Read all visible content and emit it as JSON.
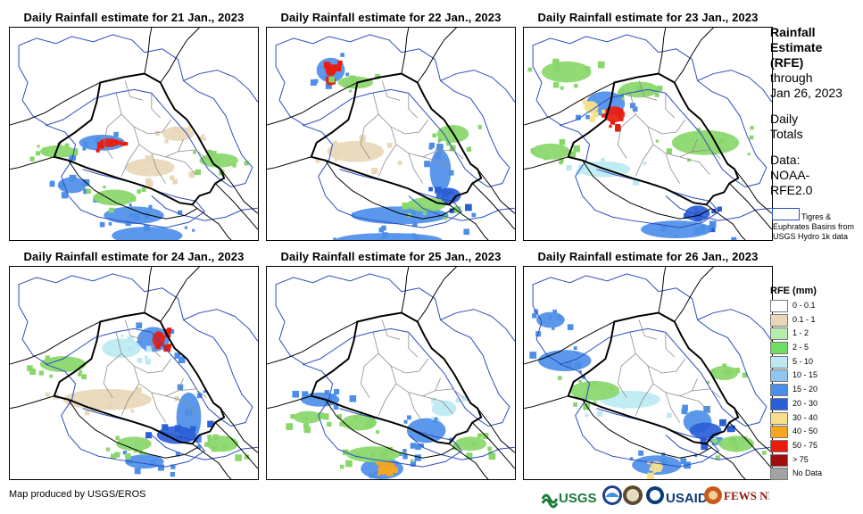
{
  "panels": [
    {
      "title": "Daily Rainfall estimate for 21 Jan., 2023",
      "blobs": [
        [
          104,
          130,
          26,
          9,
          "#4d8ee8"
        ],
        [
          112,
          130,
          11,
          5,
          "#ea1c0e"
        ],
        [
          140,
          212,
          34,
          10,
          "#4d8ee8"
        ],
        [
          70,
          178,
          16,
          9,
          "#4d8ee8"
        ],
        [
          155,
          235,
          40,
          10,
          "#4d8ee8"
        ],
        [
          54,
          140,
          20,
          7,
          "#89d76a"
        ],
        [
          236,
          150,
          22,
          8,
          "#89d76a"
        ],
        [
          158,
          158,
          28,
          10,
          "#e9d8b8"
        ],
        [
          190,
          120,
          18,
          8,
          "#e9d8b8"
        ],
        [
          118,
          192,
          24,
          9,
          "#89d76a"
        ]
      ]
    },
    {
      "title": "Daily Rainfall estimate for 22 Jan., 2023",
      "blobs": [
        [
          72,
          48,
          16,
          14,
          "#4d8ee8"
        ],
        [
          72,
          48,
          6,
          7,
          "#ea1c0e"
        ],
        [
          100,
          62,
          20,
          7,
          "#89d76a"
        ],
        [
          196,
          162,
          12,
          24,
          "#4d8ee8"
        ],
        [
          205,
          190,
          14,
          9,
          "#2b5fd6"
        ],
        [
          150,
          212,
          55,
          10,
          "#4d8ee8"
        ],
        [
          138,
          240,
          60,
          8,
          "#4d8ee8"
        ],
        [
          100,
          140,
          32,
          12,
          "#e9d8b8"
        ],
        [
          210,
          120,
          18,
          10,
          "#89d76a"
        ],
        [
          180,
          200,
          22,
          8,
          "#89d76a"
        ]
      ]
    },
    {
      "title": "Daily Rainfall estimate for 23 Jan., 2023",
      "blobs": [
        [
          92,
          86,
          22,
          14,
          "#4d8ee8"
        ],
        [
          102,
          98,
          12,
          9,
          "#ea1c0e"
        ],
        [
          76,
          90,
          8,
          7,
          "#f6e08a"
        ],
        [
          48,
          50,
          28,
          12,
          "#89d76a"
        ],
        [
          130,
          70,
          22,
          9,
          "#89d76a"
        ],
        [
          205,
          130,
          38,
          14,
          "#89d76a"
        ],
        [
          196,
          210,
          14,
          9,
          "#2b5fd6"
        ],
        [
          172,
          228,
          40,
          10,
          "#4d8ee8"
        ],
        [
          90,
          160,
          30,
          9,
          "#bdeaf2"
        ],
        [
          30,
          140,
          22,
          9,
          "#89d76a"
        ]
      ]
    },
    {
      "title": "Daily Rainfall estimate for 24 Jan., 2023",
      "blobs": [
        [
          162,
          82,
          18,
          14,
          "#4d8ee8"
        ],
        [
          168,
          82,
          7,
          9,
          "#ea1c0e"
        ],
        [
          202,
          170,
          14,
          28,
          "#4d8ee8"
        ],
        [
          188,
          190,
          22,
          10,
          "#2b5fd6"
        ],
        [
          152,
          220,
          22,
          8,
          "#4d8ee8"
        ],
        [
          126,
          92,
          22,
          11,
          "#bdeaf2"
        ],
        [
          110,
          150,
          50,
          12,
          "#e9d8b8"
        ],
        [
          60,
          110,
          26,
          9,
          "#89d76a"
        ],
        [
          240,
          200,
          18,
          9,
          "#89d76a"
        ],
        [
          140,
          200,
          20,
          8,
          "#89d76a"
        ]
      ]
    },
    {
      "title": "Daily Rainfall estimate for 25 Jan., 2023",
      "blobs": [
        [
          130,
          228,
          24,
          12,
          "#4d8ee8"
        ],
        [
          136,
          226,
          9,
          7,
          "#f6a51e"
        ],
        [
          180,
          185,
          22,
          14,
          "#4d8ee8"
        ],
        [
          60,
          150,
          22,
          8,
          "#4d8ee8"
        ],
        [
          104,
          176,
          20,
          9,
          "#89d76a"
        ],
        [
          120,
          212,
          30,
          9,
          "#89d76a"
        ],
        [
          200,
          160,
          14,
          9,
          "#bdeaf2"
        ],
        [
          230,
          200,
          18,
          8,
          "#89d76a"
        ],
        [
          46,
          170,
          16,
          7,
          "#89d76a"
        ]
      ]
    },
    {
      "title": "Daily Rainfall estimate for 26 Jan., 2023",
      "blobs": [
        [
          46,
          106,
          30,
          12,
          "#4d8ee8"
        ],
        [
          150,
          224,
          28,
          11,
          "#4d8ee8"
        ],
        [
          150,
          226,
          7,
          6,
          "#f6e08a"
        ],
        [
          196,
          175,
          16,
          13,
          "#4d8ee8"
        ],
        [
          120,
          150,
          34,
          10,
          "#bdeaf2"
        ],
        [
          205,
          185,
          18,
          9,
          "#2b5fd6"
        ],
        [
          80,
          140,
          28,
          11,
          "#89d76a"
        ],
        [
          240,
          200,
          20,
          9,
          "#89d76a"
        ],
        [
          30,
          60,
          16,
          9,
          "#4d8ee8"
        ],
        [
          226,
          120,
          16,
          8,
          "#89d76a"
        ]
      ]
    }
  ],
  "sidebar": {
    "heading_lines": [
      "Rainfall",
      "Estimate",
      "(RFE)"
    ],
    "through_lines": [
      "through",
      "Jan 26, 2023"
    ],
    "totals_lines": [
      "Daily",
      "Totals"
    ],
    "source_lines": [
      "Data:",
      "NOAA-",
      "RFE2.0"
    ],
    "basins_note": "Tigres & Euphrates Basins from USGS Hydro 1k data"
  },
  "legend": {
    "title": "RFE (mm)",
    "items": [
      {
        "label": "0 - 0.1",
        "color": "#ffffff"
      },
      {
        "label": "0.1 - 1",
        "color": "#e9d8b8"
      },
      {
        "label": "1 - 2",
        "color": "#b5ecaa"
      },
      {
        "label": "2 - 5",
        "color": "#6fdc63"
      },
      {
        "label": "5 - 10",
        "color": "#bdeaf2"
      },
      {
        "label": "10 - 15",
        "color": "#8ec6f1"
      },
      {
        "label": "15 - 20",
        "color": "#4d8ee8"
      },
      {
        "label": "20 - 30",
        "color": "#2b5fd6"
      },
      {
        "label": "30 - 40",
        "color": "#f6e08a"
      },
      {
        "label": "40 - 50",
        "color": "#f6a51e"
      },
      {
        "label": "50 - 75",
        "color": "#ea1c0e"
      },
      {
        "label": "> 75",
        "color": "#a10c0c"
      },
      {
        "label": "No Data",
        "color": "#a3a3a3"
      }
    ]
  },
  "credit": "Map produced by USGS/EROS",
  "logos": {
    "usgs": "USGS",
    "usaid": "USAID",
    "fews": "FEWS NET"
  }
}
